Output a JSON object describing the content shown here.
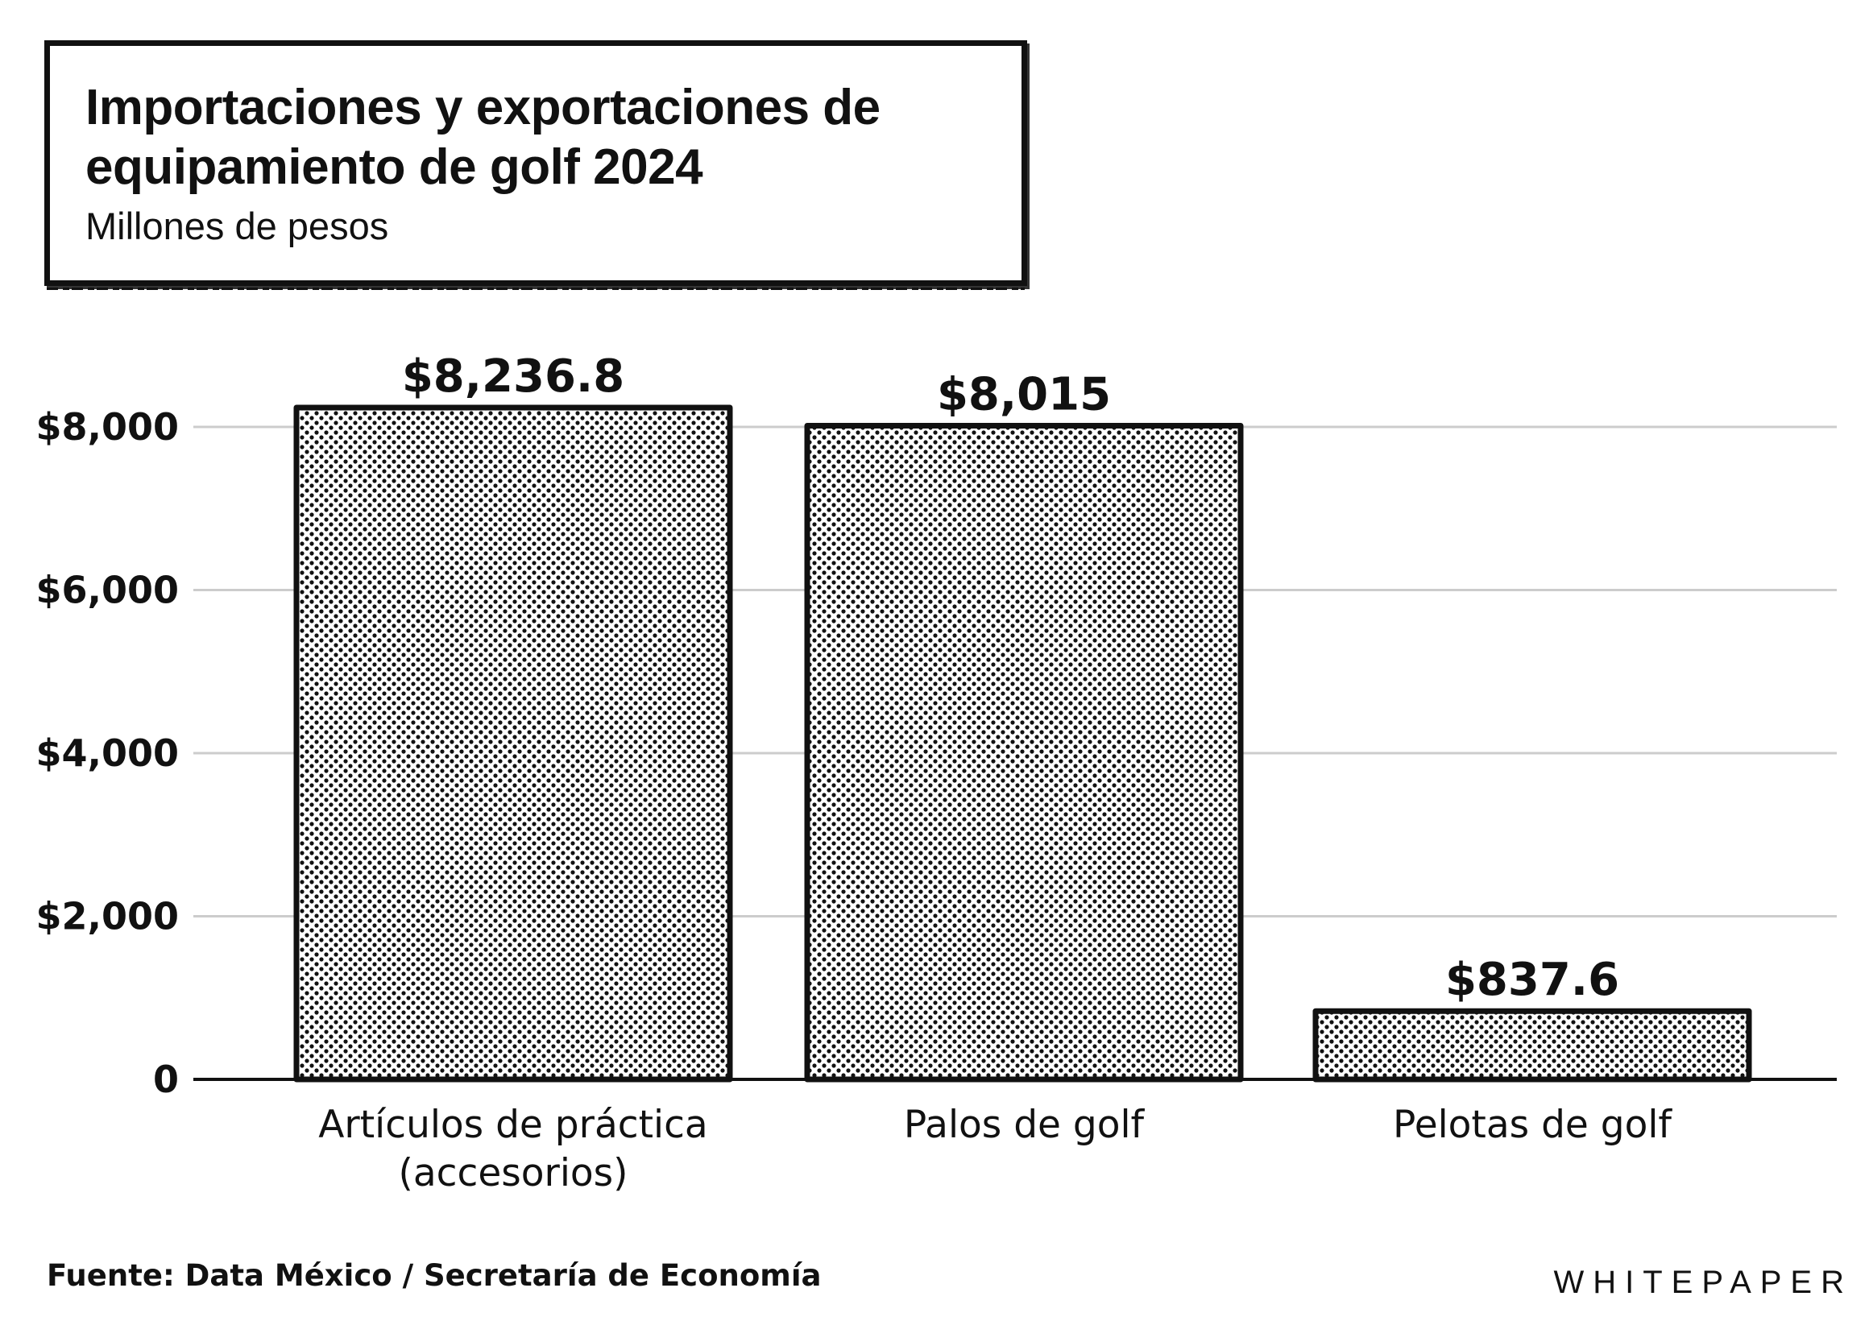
{
  "header": {
    "title": "Importaciones y exportaciones de equipamiento de golf 2024",
    "subtitle": "Millones de pesos"
  },
  "chart_data": {
    "type": "bar",
    "title": "Importaciones y exportaciones de equipamiento de golf 2024",
    "subtitle": "Millones de pesos",
    "categories": [
      [
        "Artículos de práctica",
        "(accesorios)"
      ],
      [
        "Palos de golf"
      ],
      [
        "Pelotas de golf"
      ]
    ],
    "values": [
      8236.8,
      8015,
      837.6
    ],
    "value_labels": [
      "$8,236.8",
      "$8,015",
      "$837.6"
    ],
    "y_ticks": [
      0,
      2000,
      4000,
      6000,
      8000
    ],
    "y_tick_labels": [
      "0",
      "$2,000",
      "$4,000",
      "$6,000",
      "$8,000"
    ],
    "ylim": [
      0,
      8000
    ],
    "grid": true,
    "bar_fill": "dotted-halftone",
    "colors": {
      "bar_border": "#111111",
      "dots": "#111111",
      "grid": "#cccccc",
      "background": "#ffffff"
    }
  },
  "footer": {
    "source": "Fuente: Data México / Secretaría de Economía",
    "brand": "WHITEPAPER"
  }
}
